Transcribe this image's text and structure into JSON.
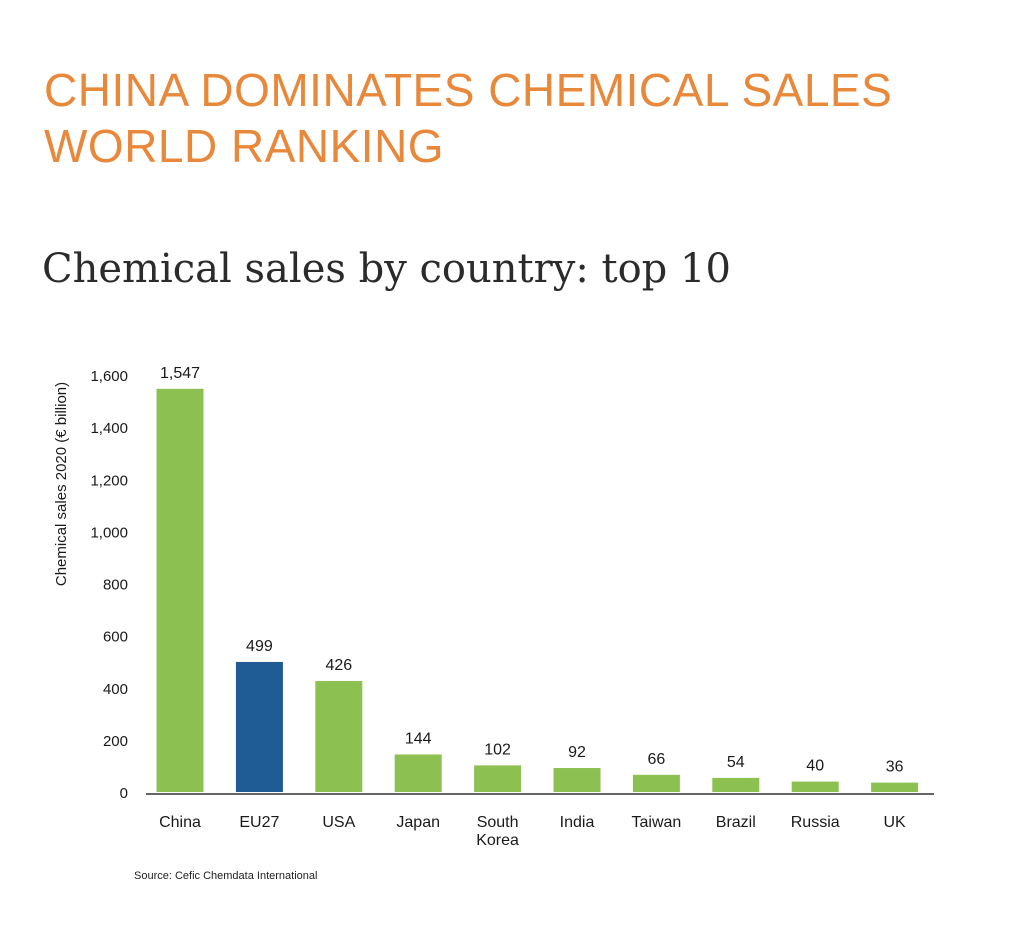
{
  "headline": {
    "line1": "CHINA DOMINATES CHEMICAL SALES",
    "line2": "WORLD RANKING"
  },
  "subtitle": "Chemical sales by country: top 10",
  "source": "Source: Cefic Chemdata International",
  "colors": {
    "headline": "#e8883a",
    "bar_default": "#8cc152",
    "bar_highlight": "#1f5b95"
  },
  "chart_data": {
    "type": "bar",
    "title": "",
    "xlabel": "",
    "ylabel": "Chemical sales 2020 (€ billion)",
    "ylim": [
      0,
      1600
    ],
    "yticks": [
      0,
      200,
      400,
      600,
      800,
      1000,
      1200,
      1400,
      1600
    ],
    "ytick_labels": [
      "0",
      "200",
      "400",
      "600",
      "800",
      "1,000",
      "1,200",
      "1,400",
      "1,600"
    ],
    "categories": [
      "China",
      "EU27",
      "USA",
      "Japan",
      "South Korea",
      "India",
      "Taiwan",
      "Brazil",
      "Russia",
      "UK"
    ],
    "category_label_lines": [
      [
        "China"
      ],
      [
        "EU27"
      ],
      [
        "USA"
      ],
      [
        "Japan"
      ],
      [
        "South",
        "Korea"
      ],
      [
        "India"
      ],
      [
        "Taiwan"
      ],
      [
        "Brazil"
      ],
      [
        "Russia"
      ],
      [
        "UK"
      ]
    ],
    "values": [
      1547,
      499,
      426,
      144,
      102,
      92,
      66,
      54,
      40,
      36
    ],
    "value_labels": [
      "1,547",
      "499",
      "426",
      "144",
      "102",
      "92",
      "66",
      "54",
      "40",
      "36"
    ],
    "highlight": "EU27",
    "grid": false,
    "legend": "none"
  }
}
